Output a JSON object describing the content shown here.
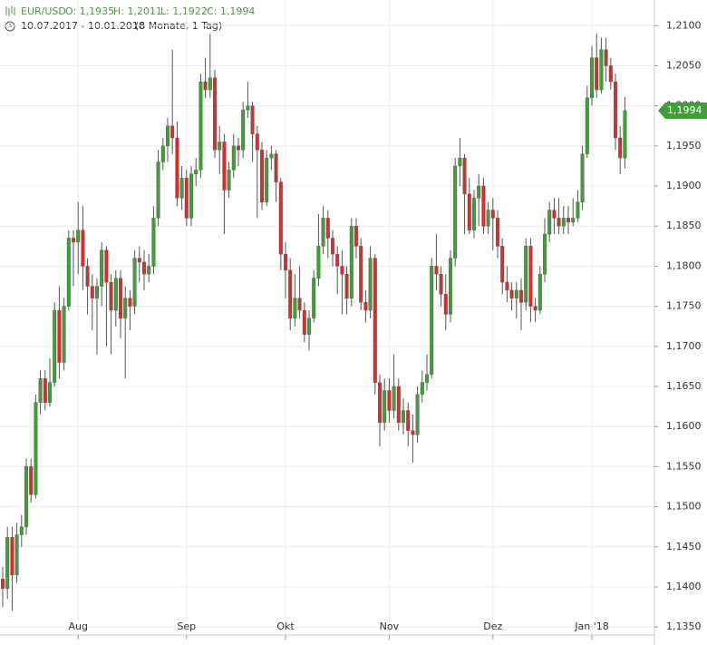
{
  "chart_data": {
    "type": "candlestick",
    "header": {
      "symbol": "EUR/USD",
      "open_label": "O: 1,1935",
      "high_label": "H: 1,2011",
      "low_label": "L: 1,1922",
      "close_label": "C: 1,1994",
      "range": "10.07.2017 - 10.01.2018",
      "span": "(6 Monate, 1 Tag)",
      "last_label": "1,1994"
    },
    "up_color": "#3f9e35",
    "down_color": "#d0312d",
    "wick_color": "#555555",
    "ylim": [
      1.134,
      1.2132
    ],
    "yticks": [
      {
        "value": 1.135,
        "label": "1,1350"
      },
      {
        "value": 1.14,
        "label": "1,1400"
      },
      {
        "value": 1.145,
        "label": "1,1450"
      },
      {
        "value": 1.15,
        "label": "1,1500"
      },
      {
        "value": 1.155,
        "label": "1,1550"
      },
      {
        "value": 1.16,
        "label": "1,1600"
      },
      {
        "value": 1.165,
        "label": "1,1650"
      },
      {
        "value": 1.17,
        "label": "1,1700"
      },
      {
        "value": 1.175,
        "label": "1,1750"
      },
      {
        "value": 1.18,
        "label": "1,1800"
      },
      {
        "value": 1.185,
        "label": "1,1850"
      },
      {
        "value": 1.19,
        "label": "1,1900"
      },
      {
        "value": 1.195,
        "label": "1,1950"
      },
      {
        "value": 1.2,
        "label": "1,2000"
      },
      {
        "value": 1.205,
        "label": "1,2050"
      },
      {
        "value": 1.21,
        "label": "1,2100"
      }
    ],
    "grid": true,
    "categories": [
      null,
      null,
      null,
      null,
      null,
      null,
      null,
      null,
      null,
      null,
      null,
      null,
      null,
      null,
      null,
      null,
      "Aug",
      null,
      null,
      null,
      null,
      null,
      null,
      null,
      null,
      null,
      null,
      null,
      null,
      null,
      null,
      null,
      null,
      null,
      null,
      null,
      null,
      null,
      null,
      "Sep",
      null,
      null,
      null,
      null,
      null,
      null,
      null,
      null,
      null,
      null,
      null,
      null,
      null,
      null,
      null,
      null,
      null,
      null,
      null,
      null,
      "Okt",
      null,
      null,
      null,
      null,
      null,
      null,
      null,
      null,
      null,
      null,
      null,
      null,
      null,
      null,
      null,
      null,
      null,
      null,
      null,
      null,
      null,
      "Nov",
      null,
      null,
      null,
      null,
      null,
      null,
      null,
      null,
      null,
      null,
      null,
      null,
      null,
      null,
      null,
      null,
      null,
      null,
      null,
      null,
      null,
      "Dez",
      null,
      null,
      null,
      null,
      null,
      null,
      null,
      null,
      null,
      null,
      null,
      null,
      null,
      null,
      null,
      null,
      null,
      null,
      null,
      null,
      "Jan '18",
      null,
      null,
      null,
      null,
      null,
      null,
      null
    ],
    "open": [
      1.141,
      1.1398,
      1.1462,
      1.1415,
      1.1465,
      1.1475,
      1.155,
      1.1515,
      1.163,
      1.166,
      1.163,
      1.1655,
      1.1745,
      1.168,
      1.175,
      1.1835,
      1.183,
      1.1845,
      1.18,
      1.1775,
      1.176,
      1.1775,
      1.182,
      1.178,
      1.1745,
      1.1785,
      1.1735,
      1.176,
      1.175,
      1.181,
      1.1805,
      1.179,
      1.18,
      1.186,
      1.193,
      1.195,
      1.1975,
      1.196,
      1.1885,
      1.191,
      1.186,
      1.1915,
      1.192,
      1.203,
      1.202,
      1.2035,
      1.1945,
      1.1955,
      1.1895,
      1.192,
      1.195,
      1.1945,
      1.1995,
      1.2,
      1.1965,
      1.1945,
      1.188,
      1.1935,
      1.194,
      1.1905,
      1.1815,
      1.1795,
      1.1735,
      1.176,
      1.1745,
      1.1715,
      1.1735,
      1.1785,
      1.1825,
      1.186,
      1.1835,
      1.1815,
      1.18,
      1.179,
      1.176,
      1.185,
      1.1825,
      1.1755,
      1.1745,
      1.181,
      1.1655,
      1.1605,
      1.1645,
      1.162,
      1.165,
      1.1605,
      1.162,
      1.1595,
      1.159,
      1.164,
      1.1655,
      1.1665,
      1.18,
      1.179,
      1.1765,
      1.174,
      1.181,
      1.1925,
      1.1935,
      1.189,
      1.1845,
      1.1885,
      1.19,
      1.185,
      1.187,
      1.186,
      1.1825,
      1.178,
      1.177,
      1.176,
      1.177,
      1.1755,
      1.1825,
      1.175,
      1.1745,
      1.179,
      1.184,
      1.187,
      1.186,
      1.185,
      1.186,
      1.1855,
      1.186,
      1.188,
      1.194,
      1.201,
      1.206,
      1.202,
      1.207,
      1.205,
      1.203,
      1.196,
      1.1935
    ],
    "high": [
      1.1425,
      1.1475,
      1.1475,
      1.148,
      1.149,
      1.156,
      1.156,
      1.164,
      1.167,
      1.167,
      1.1685,
      1.1755,
      1.1775,
      1.176,
      1.1845,
      1.1845,
      1.188,
      1.1875,
      1.181,
      1.179,
      1.1785,
      1.183,
      1.1825,
      1.179,
      1.1795,
      1.1795,
      1.1775,
      1.177,
      1.182,
      1.1825,
      1.182,
      1.1815,
      1.1875,
      1.1945,
      1.196,
      1.1985,
      1.207,
      1.198,
      1.1925,
      1.192,
      1.1925,
      1.1935,
      1.204,
      1.206,
      1.209,
      1.2045,
      1.1975,
      1.1965,
      1.193,
      1.1965,
      1.196,
      1.2005,
      1.203,
      1.2005,
      1.1975,
      1.1955,
      1.1945,
      1.195,
      1.1945,
      1.191,
      1.183,
      1.181,
      1.179,
      1.18,
      1.1755,
      1.1745,
      1.1795,
      1.1865,
      1.1875,
      1.187,
      1.1845,
      1.1825,
      1.182,
      1.18,
      1.186,
      1.186,
      1.1835,
      1.177,
      1.1825,
      1.1815,
      1.1665,
      1.166,
      1.166,
      1.169,
      1.166,
      1.1635,
      1.163,
      1.1615,
      1.165,
      1.167,
      1.169,
      1.181,
      1.184,
      1.18,
      1.179,
      1.182,
      1.1935,
      1.196,
      1.194,
      1.191,
      1.1895,
      1.1915,
      1.191,
      1.188,
      1.1885,
      1.187,
      1.1835,
      1.18,
      1.178,
      1.178,
      1.1785,
      1.1835,
      1.1835,
      1.176,
      1.18,
      1.186,
      1.188,
      1.1885,
      1.1885,
      1.1875,
      1.1875,
      1.1885,
      1.1895,
      1.195,
      1.2025,
      1.2075,
      1.209,
      1.2085,
      1.2085,
      1.206,
      1.204,
      1.1975,
      1.2011
    ],
    "low": [
      1.1375,
      1.1385,
      1.137,
      1.1405,
      1.145,
      1.1465,
      1.1505,
      1.151,
      1.1615,
      1.162,
      1.1625,
      1.165,
      1.166,
      1.167,
      1.1745,
      1.1775,
      1.179,
      1.177,
      1.174,
      1.172,
      1.169,
      1.175,
      1.17,
      1.169,
      1.1725,
      1.171,
      1.166,
      1.172,
      1.174,
      1.178,
      1.177,
      1.178,
      1.179,
      1.185,
      1.192,
      1.193,
      1.194,
      1.1875,
      1.187,
      1.185,
      1.185,
      1.19,
      1.191,
      1.201,
      1.201,
      1.1935,
      1.1915,
      1.184,
      1.1885,
      1.191,
      1.1925,
      1.1935,
      1.1985,
      1.193,
      1.186,
      1.187,
      1.1875,
      1.192,
      1.188,
      1.1795,
      1.176,
      1.172,
      1.1725,
      1.1735,
      1.1705,
      1.1695,
      1.173,
      1.1775,
      1.1815,
      1.181,
      1.18,
      1.1765,
      1.174,
      1.174,
      1.175,
      1.181,
      1.1745,
      1.173,
      1.1735,
      1.164,
      1.1575,
      1.1595,
      1.1605,
      1.161,
      1.1595,
      1.159,
      1.1575,
      1.1555,
      1.158,
      1.163,
      1.1645,
      1.166,
      1.177,
      1.175,
      1.172,
      1.173,
      1.18,
      1.19,
      1.184,
      1.184,
      1.1835,
      1.185,
      1.184,
      1.184,
      1.182,
      1.181,
      1.1765,
      1.1755,
      1.1745,
      1.1735,
      1.172,
      1.1745,
      1.173,
      1.173,
      1.174,
      1.178,
      1.183,
      1.184,
      1.184,
      1.184,
      1.184,
      1.185,
      1.1855,
      1.187,
      1.1935,
      1.2,
      1.201,
      1.2015,
      1.203,
      1.202,
      1.1945,
      1.1915,
      1.1922
    ],
    "close": [
      1.1398,
      1.1462,
      1.1415,
      1.1465,
      1.1475,
      1.155,
      1.1515,
      1.163,
      1.166,
      1.163,
      1.1655,
      1.1745,
      1.168,
      1.175,
      1.1835,
      1.183,
      1.1845,
      1.18,
      1.1775,
      1.176,
      1.1775,
      1.182,
      1.178,
      1.1745,
      1.1785,
      1.1735,
      1.176,
      1.175,
      1.181,
      1.1805,
      1.179,
      1.18,
      1.186,
      1.193,
      1.195,
      1.1975,
      1.196,
      1.1885,
      1.191,
      1.186,
      1.1915,
      1.192,
      1.203,
      1.202,
      1.2035,
      1.1945,
      1.1955,
      1.1895,
      1.192,
      1.195,
      1.1945,
      1.1995,
      1.2,
      1.1965,
      1.1945,
      1.188,
      1.1935,
      1.194,
      1.1905,
      1.1815,
      1.1795,
      1.1735,
      1.176,
      1.1745,
      1.1715,
      1.1735,
      1.1785,
      1.1825,
      1.186,
      1.1835,
      1.1815,
      1.18,
      1.179,
      1.176,
      1.185,
      1.1825,
      1.1755,
      1.1745,
      1.181,
      1.1655,
      1.1605,
      1.1645,
      1.162,
      1.165,
      1.1605,
      1.162,
      1.1595,
      1.159,
      1.164,
      1.1655,
      1.1665,
      1.18,
      1.179,
      1.1765,
      1.174,
      1.181,
      1.1925,
      1.1935,
      1.189,
      1.1845,
      1.1885,
      1.19,
      1.185,
      1.187,
      1.186,
      1.1825,
      1.178,
      1.177,
      1.176,
      1.177,
      1.1755,
      1.1825,
      1.175,
      1.1745,
      1.179,
      1.184,
      1.187,
      1.186,
      1.185,
      1.186,
      1.1855,
      1.186,
      1.188,
      1.194,
      1.201,
      1.206,
      1.202,
      1.207,
      1.205,
      1.203,
      1.196,
      1.1935,
      1.1994
    ]
  }
}
